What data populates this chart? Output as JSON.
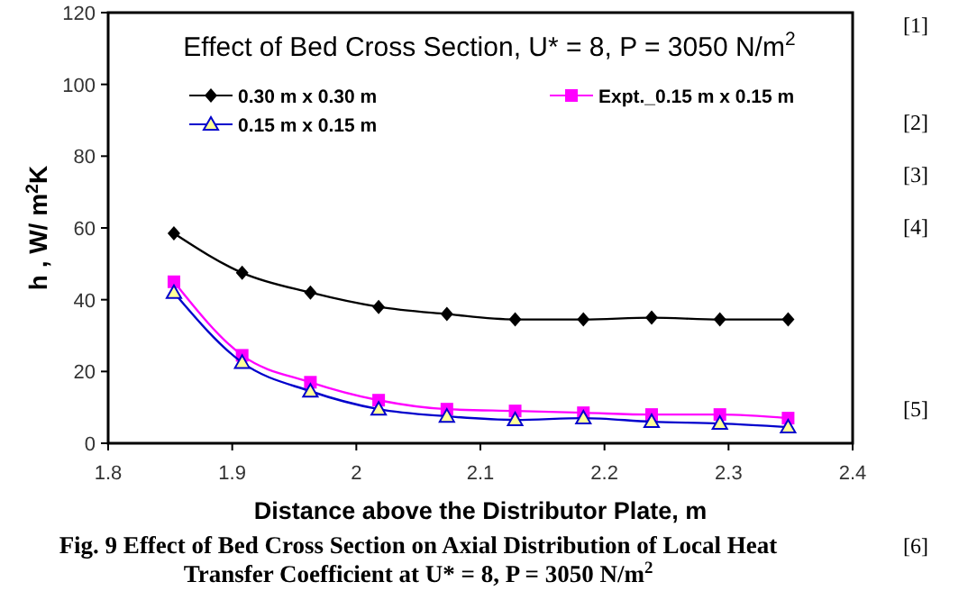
{
  "chart_data": {
    "type": "line",
    "title": "Effect of Bed Cross Section, U* = 8, P = 3050 N/m$^{2}$",
    "xlabel": "Distance above the Distributor Plate, m",
    "ylabel": "h , W/ m$^{2}$K",
    "x": [
      1.853,
      1.908,
      1.963,
      2.018,
      2.073,
      2.128,
      2.183,
      2.238,
      2.293,
      2.348
    ],
    "series": [
      {
        "name": "0.30 m x 0.30 m",
        "color": "#000000",
        "marker": "diamond",
        "values": [
          58.5,
          47.5,
          42,
          38,
          36,
          34.5,
          34.5,
          35,
          34.5,
          34.5
        ]
      },
      {
        "name": "Expt._0.15 m x 0.15 m",
        "color": "#ff00ff",
        "marker": "square",
        "values": [
          45,
          24.5,
          17,
          12,
          9.5,
          9,
          8.5,
          8,
          8,
          7
        ]
      },
      {
        "name": "0.15 m x 0.15 m",
        "color": "#0000cc",
        "marker": "triangle",
        "values": [
          42,
          22.5,
          14.5,
          9.5,
          7.5,
          6.5,
          7,
          6,
          5.5,
          4.5
        ]
      }
    ],
    "xlim": [
      1.8,
      2.4
    ],
    "xticks": [
      1.8,
      1.9,
      2,
      2.1,
      2.2,
      2.3,
      2.4
    ],
    "ylim": [
      0,
      120
    ],
    "yticks": [
      0,
      20,
      40,
      60,
      80,
      100,
      120
    ],
    "grid": false,
    "legend": "top",
    "annotations": [
      "[1]",
      "[2]",
      "[3]",
      "[4]",
      "[5]",
      "Fig. 9 Effect of Bed Cross Section on Axial Distribution of Local Heat",
      "[6]",
      "Transfer Coefficient at U* = 8, P = 3050 N/m$^{2}$"
    ]
  }
}
